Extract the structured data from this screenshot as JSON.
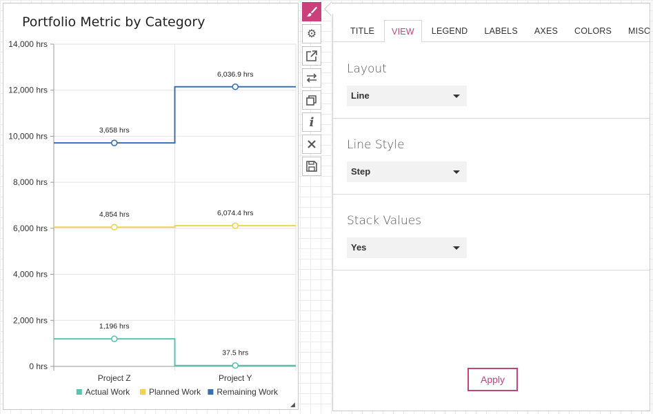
{
  "chart": {
    "title": "Portfolio Metric by Category"
  },
  "chart_data": {
    "type": "line",
    "line_style": "step",
    "stacked": true,
    "title": "Portfolio Metric by Category",
    "categories": [
      "Project Z",
      "Project Y"
    ],
    "y_ticks": [
      "0 hrs",
      "2,000 hrs",
      "4,000 hrs",
      "6,000 hrs",
      "8,000 hrs",
      "10,000 hrs",
      "12,000 hrs",
      "14,000 hrs"
    ],
    "ylim": [
      0,
      14000
    ],
    "grid": true,
    "legend_position": "bottom",
    "series": [
      {
        "name": "Actual Work",
        "color": "#5bc2ae",
        "values": [
          1196,
          37.5
        ],
        "stacked_values": [
          1196,
          37.5
        ],
        "labels": [
          "1,196 hrs",
          "37.5 hrs"
        ]
      },
      {
        "name": "Planned Work",
        "color": "#f2d34f",
        "values": [
          4854,
          6074.4
        ],
        "stacked_values": [
          6050,
          6111.9
        ],
        "labels": [
          "4,854 hrs",
          "6,074.4 hrs"
        ]
      },
      {
        "name": "Remaining Work",
        "color": "#3a6fb0",
        "values": [
          3658,
          6036.9
        ],
        "stacked_values": [
          9708,
          12148.8
        ],
        "labels": [
          "3,658 hrs",
          "6,036.9 hrs"
        ]
      }
    ]
  },
  "toolbar": {
    "buttons": [
      {
        "icon": "paintbrush-icon",
        "active": true
      },
      {
        "icon": "gear-icon",
        "active": false
      },
      {
        "icon": "popout-icon",
        "active": false
      },
      {
        "icon": "swap-icon",
        "active": false
      },
      {
        "icon": "copy-icon",
        "active": false
      },
      {
        "icon": "info-icon",
        "active": false
      },
      {
        "icon": "close-icon",
        "active": false
      },
      {
        "icon": "save-icon",
        "active": false
      }
    ]
  },
  "panel": {
    "tabs": [
      "TITLE",
      "VIEW",
      "LEGEND",
      "LABELS",
      "AXES",
      "COLORS",
      "MISC"
    ],
    "active_tab": "VIEW",
    "layout_label": "Layout",
    "layout_value": "Line",
    "line_style_label": "Line Style",
    "line_style_value": "Step",
    "stack_values_label": "Stack Values",
    "stack_values_value": "Yes",
    "apply_label": "Apply"
  },
  "colors": {
    "accent": "#c9407a"
  }
}
